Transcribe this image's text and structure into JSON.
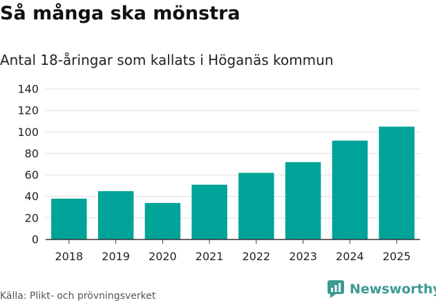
{
  "header": {
    "title": "Så många ska mönstra",
    "subtitle": "Antal 18-åringar som kallats i Höganäs kommun"
  },
  "footer": {
    "source": "Källa: Plikt- och prövningsverket",
    "brand": "Newsworthy",
    "brand_icon": "newsworthy-logo-icon",
    "brand_color": "#3d9a92"
  },
  "chart_data": {
    "type": "bar",
    "categories": [
      "2018",
      "2019",
      "2020",
      "2021",
      "2022",
      "2023",
      "2024",
      "2025"
    ],
    "values": [
      38,
      45,
      34,
      51,
      62,
      72,
      92,
      105
    ],
    "ylim": [
      0,
      140
    ],
    "yticks": [
      0,
      20,
      40,
      60,
      80,
      100,
      120,
      140
    ],
    "grid": true,
    "bar_color": "#00a398"
  }
}
